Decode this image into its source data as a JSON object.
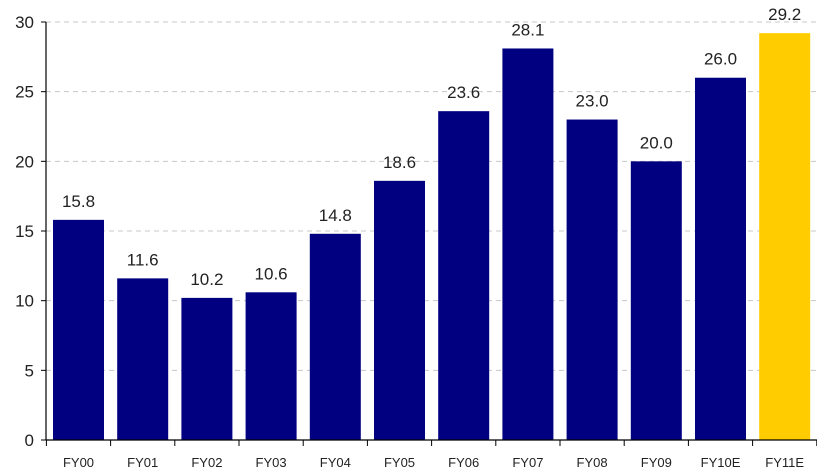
{
  "chart_data": {
    "type": "bar",
    "categories": [
      "FY00",
      "FY01",
      "FY02",
      "FY03",
      "FY04",
      "FY05",
      "FY06",
      "FY07",
      "FY08",
      "FY09",
      "FY10E",
      "FY11E"
    ],
    "values": [
      15.8,
      11.6,
      10.2,
      10.6,
      14.8,
      18.6,
      23.6,
      28.1,
      23.0,
      20.0,
      26.0,
      29.2
    ],
    "data_labels": [
      "15.8",
      "11.6",
      "10.2",
      "10.6",
      "14.8",
      "18.6",
      "23.6",
      "28.1",
      "23.0",
      "20.0",
      "26.0",
      "29.2"
    ],
    "title": "",
    "xlabel": "",
    "ylabel": "",
    "ylim": [
      0,
      30
    ],
    "yticks": [
      0,
      5,
      10,
      15,
      20,
      25,
      30
    ],
    "grid": "horizontal dashed",
    "legend": "none",
    "colors": {
      "bar": "#000080",
      "highlight_bar": "#FFCC00",
      "highlight_index": 11,
      "grid": "#c8c8c8",
      "axis": "#000000"
    }
  }
}
